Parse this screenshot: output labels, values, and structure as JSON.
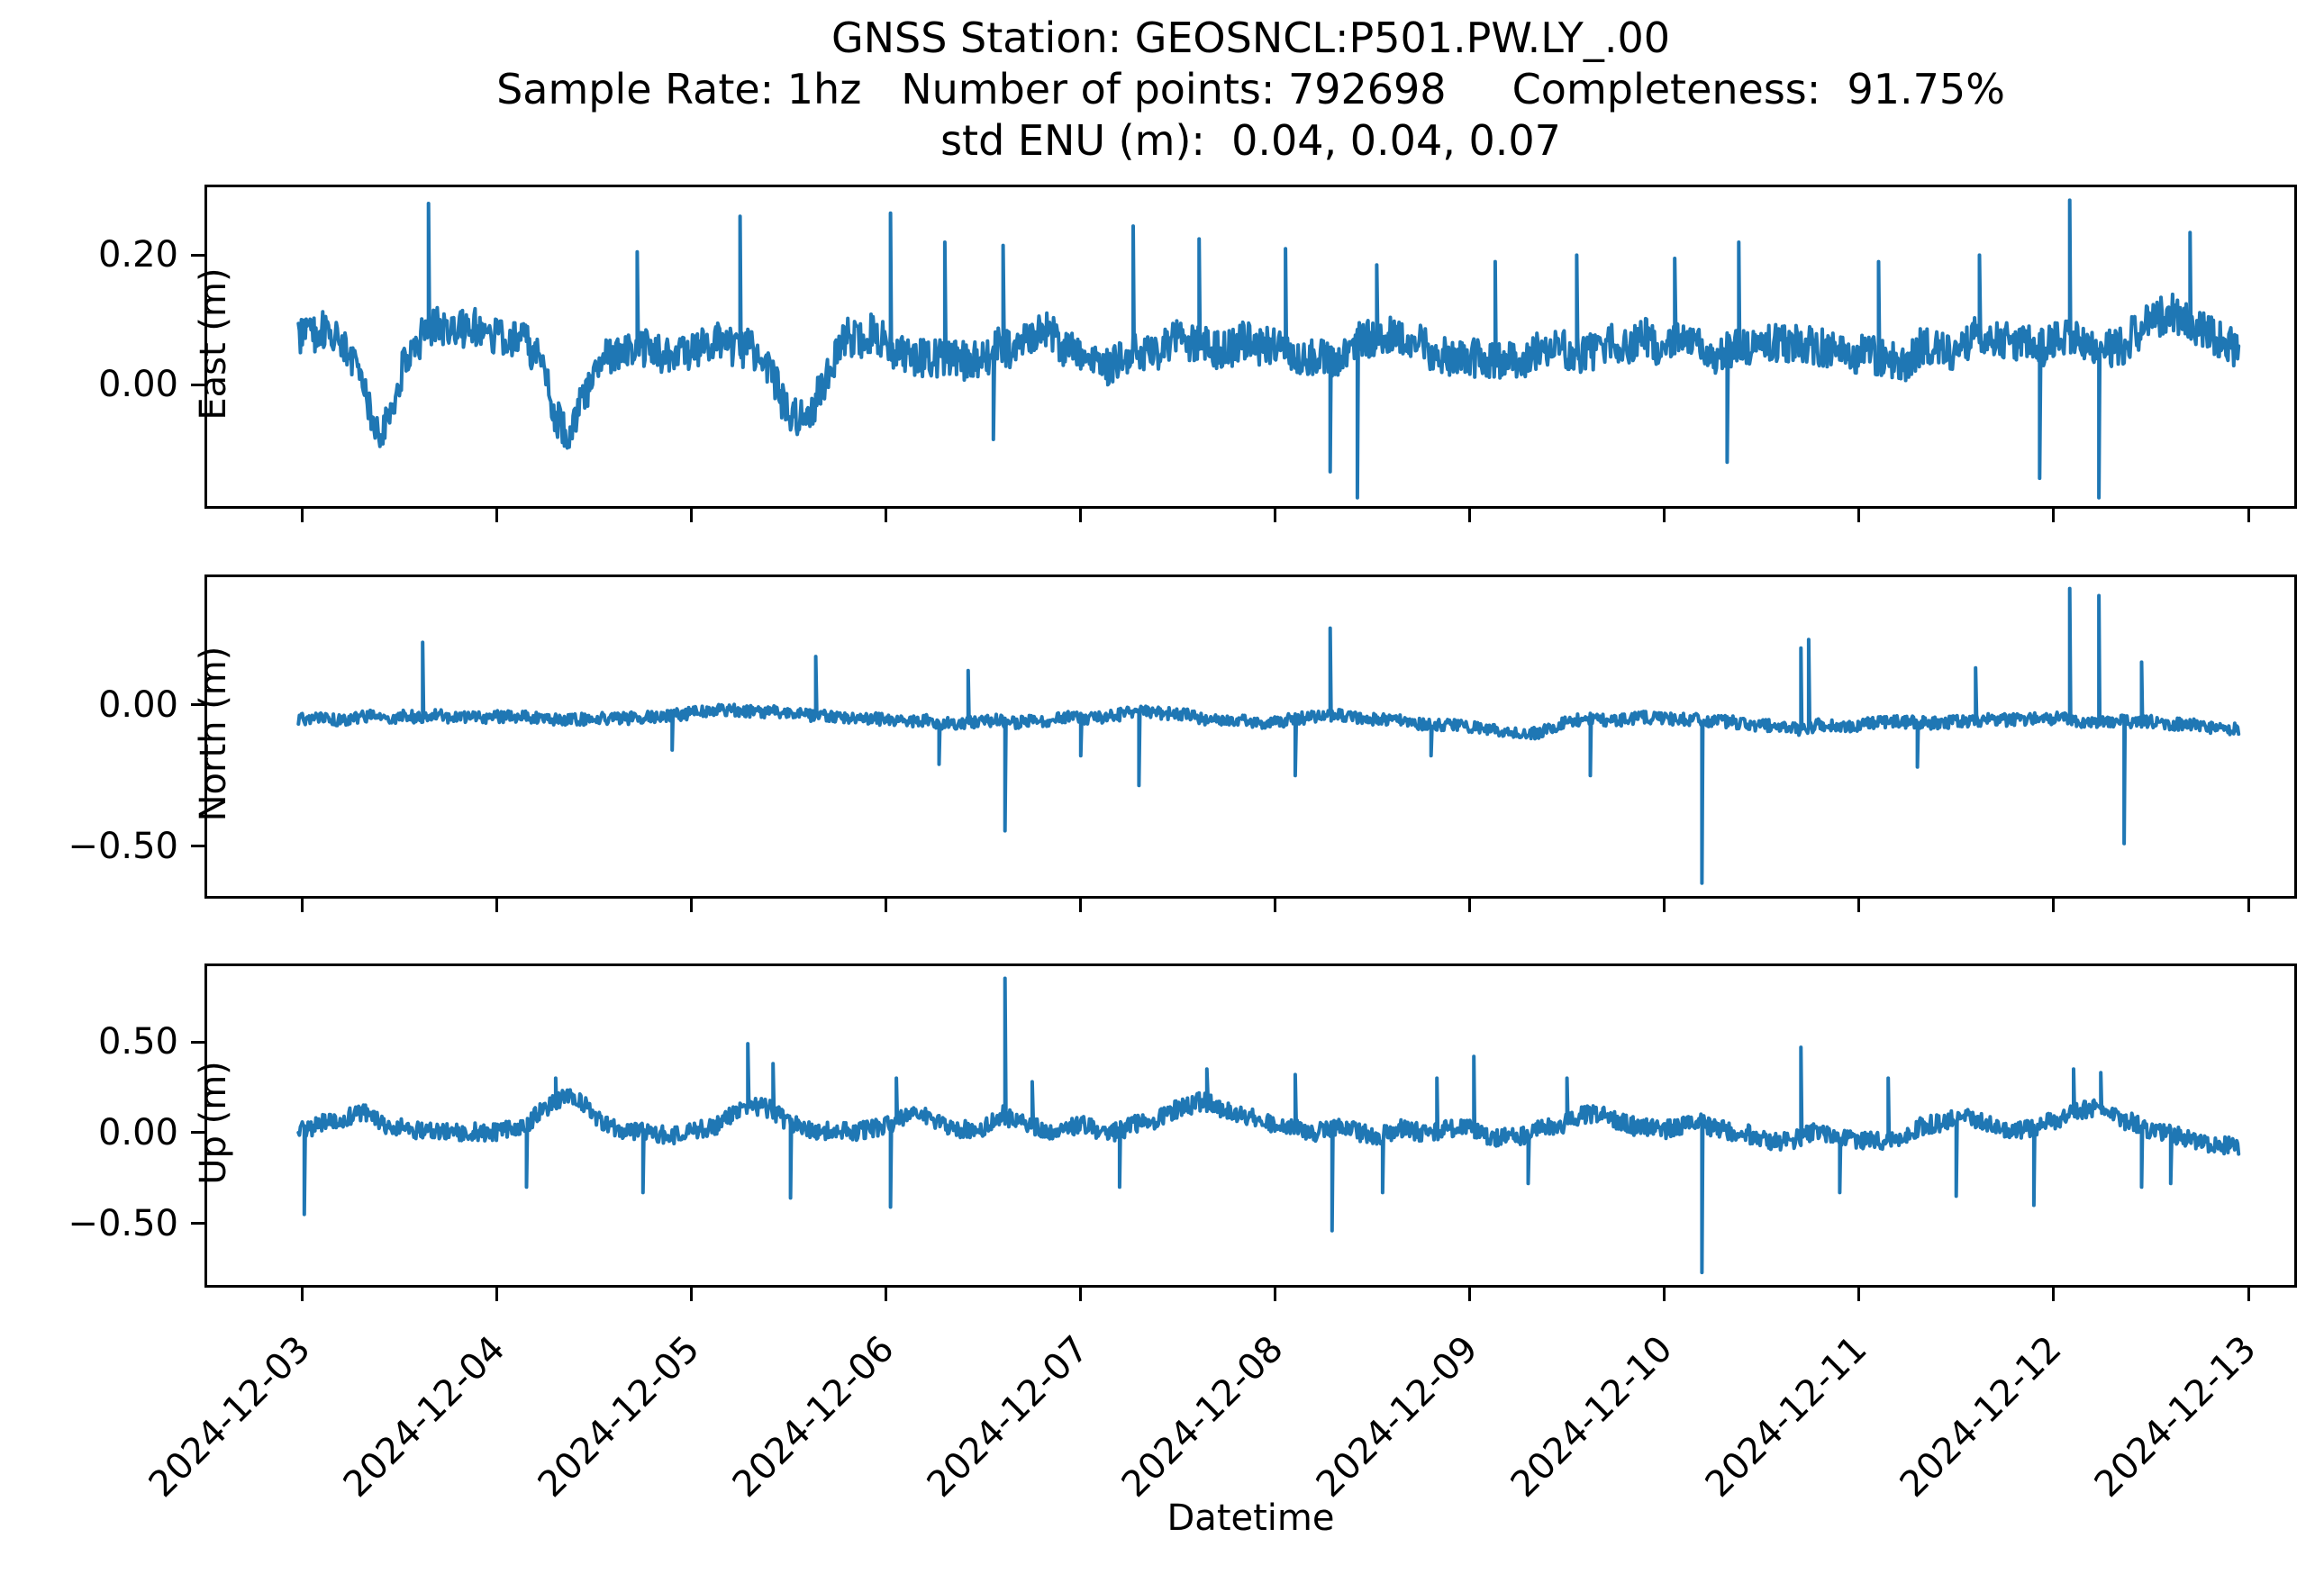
{
  "title": {
    "line1": "GNSS Station: GEOSNCL:P501.PW.LY_.00",
    "line2": "Sample Rate: 1hz   Number of points: 792698     Completeness:  91.75%",
    "line3": "std ENU (m):  0.04, 0.04, 0.07"
  },
  "xlabel": "Datetime",
  "chart_data": {
    "type": "line",
    "line_color": "#1f77b4",
    "axis_color": "#000000",
    "background": "#ffffff",
    "grid": false,
    "legend": "none",
    "x_tick_labels": [
      "2024-12-03",
      "2024-12-04",
      "2024-12-05",
      "2024-12-06",
      "2024-12-07",
      "2024-12-08",
      "2024-12-09",
      "2024-12-10",
      "2024-12-11",
      "2024-12-12",
      "2024-12-13"
    ],
    "x_origin_date": "2024-12-03",
    "xlim_days": [
      -0.489,
      10.236
    ],
    "data_span_days": [
      -0.02,
      9.95
    ],
    "subplots": [
      {
        "ylabel": "East (m)",
        "ylim": [
          -0.188,
          0.305
        ],
        "yticks": [
          0.2,
          0.0
        ],
        "ytick_labels": [
          "0.20",
          "0.00"
        ],
        "seed": 42,
        "wander_amp": 0.035,
        "noise_amp": 0.03,
        "midline": [
          [
            -0.02,
            0.08
          ],
          [
            0.1,
            0.085
          ],
          [
            0.22,
            0.06
          ],
          [
            0.3,
            0.01
          ],
          [
            0.38,
            -0.055
          ],
          [
            0.46,
            -0.05
          ],
          [
            0.52,
            0.02
          ],
          [
            0.6,
            0.065
          ],
          [
            0.75,
            0.08
          ],
          [
            0.95,
            0.075
          ],
          [
            1.1,
            0.065
          ],
          [
            1.22,
            0.03
          ],
          [
            1.3,
            -0.05
          ],
          [
            1.38,
            -0.085
          ],
          [
            1.46,
            -0.01
          ],
          [
            1.55,
            0.05
          ],
          [
            1.7,
            0.065
          ],
          [
            1.85,
            0.055
          ],
          [
            2.0,
            0.065
          ],
          [
            2.15,
            0.075
          ],
          [
            2.3,
            0.055
          ],
          [
            2.42,
            0.01
          ],
          [
            2.5,
            -0.05
          ],
          [
            2.58,
            -0.06
          ],
          [
            2.68,
            0.02
          ],
          [
            2.8,
            0.075
          ],
          [
            2.95,
            0.07
          ],
          [
            3.1,
            0.055
          ],
          [
            3.25,
            0.04
          ],
          [
            3.4,
            0.025
          ],
          [
            3.52,
            0.02
          ],
          [
            3.65,
            0.05
          ],
          [
            3.8,
            0.065
          ],
          [
            3.95,
            0.055
          ],
          [
            4.1,
            0.03
          ],
          [
            4.25,
            0.05
          ],
          [
            4.4,
            0.065
          ],
          [
            4.55,
            0.07
          ],
          [
            4.7,
            0.045
          ],
          [
            4.85,
            0.055
          ],
          [
            5.0,
            0.04
          ],
          [
            5.15,
            0.025
          ],
          [
            5.3,
            0.03
          ],
          [
            5.45,
            0.055
          ],
          [
            5.6,
            0.065
          ],
          [
            5.75,
            0.06
          ],
          [
            5.9,
            0.05
          ],
          [
            6.05,
            0.06
          ],
          [
            6.2,
            0.045
          ],
          [
            6.35,
            0.055
          ],
          [
            6.5,
            0.06
          ],
          [
            6.65,
            0.05
          ],
          [
            6.8,
            0.065
          ],
          [
            6.95,
            0.06
          ],
          [
            7.1,
            0.055
          ],
          [
            7.25,
            0.045
          ],
          [
            7.4,
            0.055
          ],
          [
            7.55,
            0.06
          ],
          [
            7.7,
            0.07
          ],
          [
            7.85,
            0.055
          ],
          [
            8.0,
            0.065
          ],
          [
            8.15,
            0.055
          ],
          [
            8.3,
            0.06
          ],
          [
            8.45,
            0.065
          ],
          [
            8.6,
            0.07
          ],
          [
            8.75,
            0.05
          ],
          [
            8.9,
            0.045
          ],
          [
            9.05,
            0.065
          ],
          [
            9.2,
            0.075
          ],
          [
            9.35,
            0.08
          ],
          [
            9.5,
            0.105
          ],
          [
            9.6,
            0.13
          ],
          [
            9.7,
            0.105
          ],
          [
            9.8,
            0.085
          ],
          [
            9.95,
            0.06
          ]
        ],
        "spikes": [
          [
            0.65,
            0.28
          ],
          [
            1.72,
            0.205
          ],
          [
            2.25,
            0.26
          ],
          [
            3.02,
            0.265
          ],
          [
            3.3,
            0.22
          ],
          [
            3.55,
            -0.085
          ],
          [
            3.6,
            0.215
          ],
          [
            4.27,
            0.245
          ],
          [
            4.61,
            0.225
          ],
          [
            5.05,
            0.21
          ],
          [
            5.28,
            -0.135
          ],
          [
            5.42,
            -0.175
          ],
          [
            5.52,
            0.185
          ],
          [
            6.13,
            0.19
          ],
          [
            6.55,
            0.2
          ],
          [
            7.05,
            0.195
          ],
          [
            7.32,
            -0.12
          ],
          [
            7.38,
            0.22
          ],
          [
            8.1,
            0.19
          ],
          [
            8.62,
            0.2
          ],
          [
            8.93,
            -0.145
          ],
          [
            9.08,
            0.285
          ],
          [
            9.23,
            -0.175
          ],
          [
            9.7,
            0.235
          ]
        ]
      },
      {
        "ylabel": "North (m)",
        "ylim": [
          -0.675,
          0.45
        ],
        "yticks": [
          0.0,
          -0.5
        ],
        "ytick_labels": [
          "0.00",
          "−0.50"
        ],
        "seed": 1337,
        "wander_amp": 0.02,
        "noise_amp": 0.022,
        "midline": [
          [
            -0.02,
            -0.05
          ],
          [
            0.3,
            -0.035
          ],
          [
            0.6,
            -0.04
          ],
          [
            0.9,
            -0.05
          ],
          [
            1.2,
            -0.045
          ],
          [
            1.5,
            -0.05
          ],
          [
            1.8,
            -0.04
          ],
          [
            2.1,
            -0.025
          ],
          [
            2.35,
            -0.015
          ],
          [
            2.6,
            -0.03
          ],
          [
            2.9,
            -0.045
          ],
          [
            3.1,
            -0.05
          ],
          [
            3.3,
            -0.07
          ],
          [
            3.5,
            -0.06
          ],
          [
            3.7,
            -0.055
          ],
          [
            3.9,
            -0.05
          ],
          [
            4.1,
            -0.045
          ],
          [
            4.3,
            -0.03
          ],
          [
            4.5,
            -0.04
          ],
          [
            4.7,
            -0.05
          ],
          [
            4.9,
            -0.055
          ],
          [
            5.1,
            -0.05
          ],
          [
            5.3,
            -0.04
          ],
          [
            5.5,
            -0.05
          ],
          [
            5.7,
            -0.055
          ],
          [
            5.9,
            -0.07
          ],
          [
            6.1,
            -0.085
          ],
          [
            6.3,
            -0.095
          ],
          [
            6.5,
            -0.065
          ],
          [
            6.7,
            -0.055
          ],
          [
            6.9,
            -0.05
          ],
          [
            7.1,
            -0.055
          ],
          [
            7.3,
            -0.065
          ],
          [
            7.5,
            -0.08
          ],
          [
            7.7,
            -0.09
          ],
          [
            7.9,
            -0.075
          ],
          [
            8.1,
            -0.065
          ],
          [
            8.3,
            -0.06
          ],
          [
            8.5,
            -0.05
          ],
          [
            8.7,
            -0.045
          ],
          [
            8.9,
            -0.04
          ],
          [
            9.1,
            -0.045
          ],
          [
            9.3,
            -0.05
          ],
          [
            9.5,
            -0.06
          ],
          [
            9.7,
            -0.07
          ],
          [
            9.95,
            -0.09
          ]
        ],
        "spikes": [
          [
            0.62,
            0.22
          ],
          [
            1.9,
            -0.16
          ],
          [
            2.64,
            0.17
          ],
          [
            3.27,
            -0.21
          ],
          [
            3.42,
            0.12
          ],
          [
            3.61,
            -0.445
          ],
          [
            4.0,
            -0.18
          ],
          [
            4.3,
            -0.285
          ],
          [
            5.1,
            -0.25
          ],
          [
            5.28,
            0.27
          ],
          [
            5.8,
            -0.18
          ],
          [
            6.62,
            -0.25
          ],
          [
            7.19,
            -0.63
          ],
          [
            7.7,
            0.2
          ],
          [
            7.74,
            0.23
          ],
          [
            8.3,
            -0.22
          ],
          [
            8.6,
            0.13
          ],
          [
            9.08,
            0.41
          ],
          [
            9.23,
            0.385
          ],
          [
            9.36,
            -0.49
          ],
          [
            9.45,
            0.15
          ]
        ]
      },
      {
        "ylabel": "Up (m)",
        "ylim": [
          -0.839,
          0.917
        ],
        "yticks": [
          0.5,
          0.0,
          -0.5
        ],
        "ytick_labels": [
          "0.50",
          "0.00",
          "−0.50"
        ],
        "seed": 2024,
        "wander_amp": 0.045,
        "noise_amp": 0.05,
        "midline": [
          [
            -0.02,
            0.0
          ],
          [
            0.15,
            0.05
          ],
          [
            0.3,
            0.1
          ],
          [
            0.42,
            0.04
          ],
          [
            0.55,
            0.0
          ],
          [
            0.7,
            -0.01
          ],
          [
            0.85,
            0.01
          ],
          [
            1.0,
            0.0
          ],
          [
            1.15,
            0.03
          ],
          [
            1.3,
            0.17
          ],
          [
            1.4,
            0.19
          ],
          [
            1.5,
            0.1
          ],
          [
            1.6,
            0.02
          ],
          [
            1.75,
            0.0
          ],
          [
            1.9,
            -0.02
          ],
          [
            2.05,
            0.0
          ],
          [
            2.2,
            0.08
          ],
          [
            2.3,
            0.16
          ],
          [
            2.4,
            0.14
          ],
          [
            2.5,
            0.05
          ],
          [
            2.65,
            0.0
          ],
          [
            2.8,
            0.01
          ],
          [
            2.95,
            0.04
          ],
          [
            3.1,
            0.12
          ],
          [
            3.2,
            0.1
          ],
          [
            3.35,
            0.03
          ],
          [
            3.5,
            0.04
          ],
          [
            3.6,
            0.1
          ],
          [
            3.7,
            0.05
          ],
          [
            3.85,
            0.0
          ],
          [
            4.0,
            0.02
          ],
          [
            4.15,
            0.0
          ],
          [
            4.3,
            0.04
          ],
          [
            4.45,
            0.1
          ],
          [
            4.6,
            0.15
          ],
          [
            4.75,
            0.12
          ],
          [
            4.9,
            0.05
          ],
          [
            5.05,
            0.02
          ],
          [
            5.2,
            0.0
          ],
          [
            5.35,
            0.02
          ],
          [
            5.5,
            0.0
          ],
          [
            5.65,
            0.03
          ],
          [
            5.8,
            0.02
          ],
          [
            5.95,
            0.05
          ],
          [
            6.1,
            0.0
          ],
          [
            6.25,
            -0.02
          ],
          [
            6.4,
            0.03
          ],
          [
            6.55,
            0.1
          ],
          [
            6.7,
            0.08
          ],
          [
            6.85,
            0.02
          ],
          [
            7.0,
            0.0
          ],
          [
            7.15,
            0.04
          ],
          [
            7.3,
            0.02
          ],
          [
            7.45,
            -0.02
          ],
          [
            7.6,
            -0.04
          ],
          [
            7.75,
            0.02
          ],
          [
            7.9,
            0.0
          ],
          [
            8.05,
            -0.03
          ],
          [
            8.2,
            0.0
          ],
          [
            8.35,
            0.05
          ],
          [
            8.5,
            0.08
          ],
          [
            8.65,
            0.04
          ],
          [
            8.8,
            0.0
          ],
          [
            8.95,
            0.03
          ],
          [
            9.1,
            0.08
          ],
          [
            9.2,
            0.12
          ],
          [
            9.35,
            0.05
          ],
          [
            9.5,
            0.0
          ],
          [
            9.65,
            -0.02
          ],
          [
            9.8,
            -0.05
          ],
          [
            9.95,
            -0.08
          ]
        ],
        "spikes": [
          [
            0.01,
            -0.45
          ],
          [
            1.15,
            -0.3
          ],
          [
            1.3,
            0.3
          ],
          [
            1.75,
            -0.33
          ],
          [
            2.29,
            0.49
          ],
          [
            2.42,
            0.38
          ],
          [
            2.51,
            -0.36
          ],
          [
            3.02,
            -0.41
          ],
          [
            3.05,
            0.3
          ],
          [
            3.61,
            0.85
          ],
          [
            3.75,
            0.28
          ],
          [
            4.2,
            -0.3
          ],
          [
            4.65,
            0.35
          ],
          [
            5.1,
            0.32
          ],
          [
            5.29,
            -0.54
          ],
          [
            5.55,
            -0.33
          ],
          [
            5.83,
            0.3
          ],
          [
            6.02,
            0.42
          ],
          [
            6.3,
            -0.28
          ],
          [
            6.5,
            0.3
          ],
          [
            7.19,
            -0.77
          ],
          [
            7.7,
            0.47
          ],
          [
            7.9,
            -0.33
          ],
          [
            8.15,
            0.3
          ],
          [
            8.5,
            -0.35
          ],
          [
            8.9,
            -0.4
          ],
          [
            9.1,
            0.35
          ],
          [
            9.24,
            0.33
          ],
          [
            9.45,
            -0.3
          ],
          [
            9.6,
            -0.28
          ]
        ]
      }
    ]
  }
}
